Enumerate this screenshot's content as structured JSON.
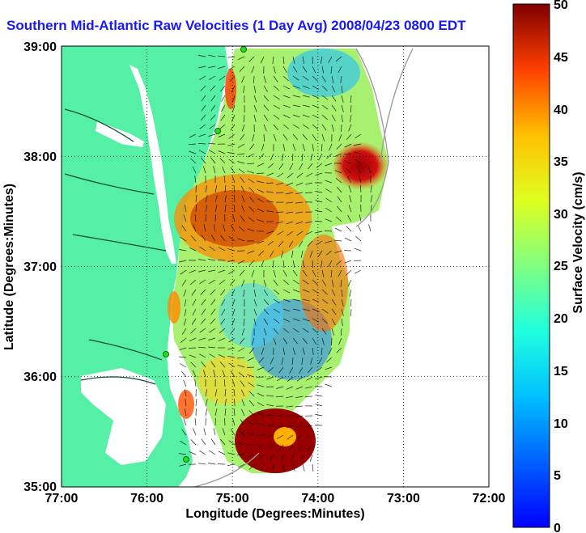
{
  "title": "Southern Mid-Atlantic Raw Velocities (1 Day Avg) 2008/04/23 0800 EDT",
  "map": {
    "xlabel": "Longitude (Degrees:Minutes)",
    "ylabel": "Latitude (Degrees:Minutes)",
    "xticks": [
      "77:00",
      "76:00",
      "75:00",
      "74:00",
      "73:00",
      "72:00"
    ],
    "yticks": [
      "39:00",
      "38:00",
      "37:00",
      "36:00",
      "35:00"
    ],
    "lon_range": [
      -77,
      -72
    ],
    "lat_range": [
      35,
      39
    ],
    "land_color": "#55f0a5",
    "water_color": "#ffffff",
    "station_color": "#22dd22"
  },
  "colorbar": {
    "label": "Surface Velocity (cm/s)",
    "ticks": [
      "50",
      "45",
      "40",
      "35",
      "30",
      "25",
      "20",
      "15",
      "10",
      "5",
      "0"
    ],
    "range": [
      0,
      50
    ],
    "colormap": "jet"
  }
}
